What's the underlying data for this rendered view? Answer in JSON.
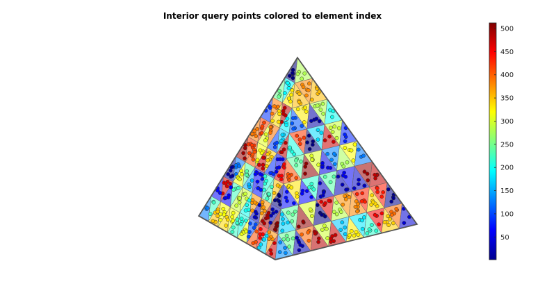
{
  "chart_data": {
    "type": "scatter",
    "title": "Interior query points colored to element index",
    "xlabel": "",
    "ylabel": "",
    "grid": false,
    "view": "3d",
    "shape": "tetrahedron subdivided into elements",
    "colormap": {
      "name": "jet",
      "clim": [
        1,
        512
      ],
      "ticks": [
        50,
        100,
        150,
        200,
        250,
        300,
        350,
        400,
        450,
        500
      ],
      "tick_labels": [
        "50",
        "100",
        "150",
        "200",
        "250",
        "300",
        "350",
        "400",
        "450",
        "500"
      ],
      "location": "right"
    },
    "element_count": 512
  }
}
